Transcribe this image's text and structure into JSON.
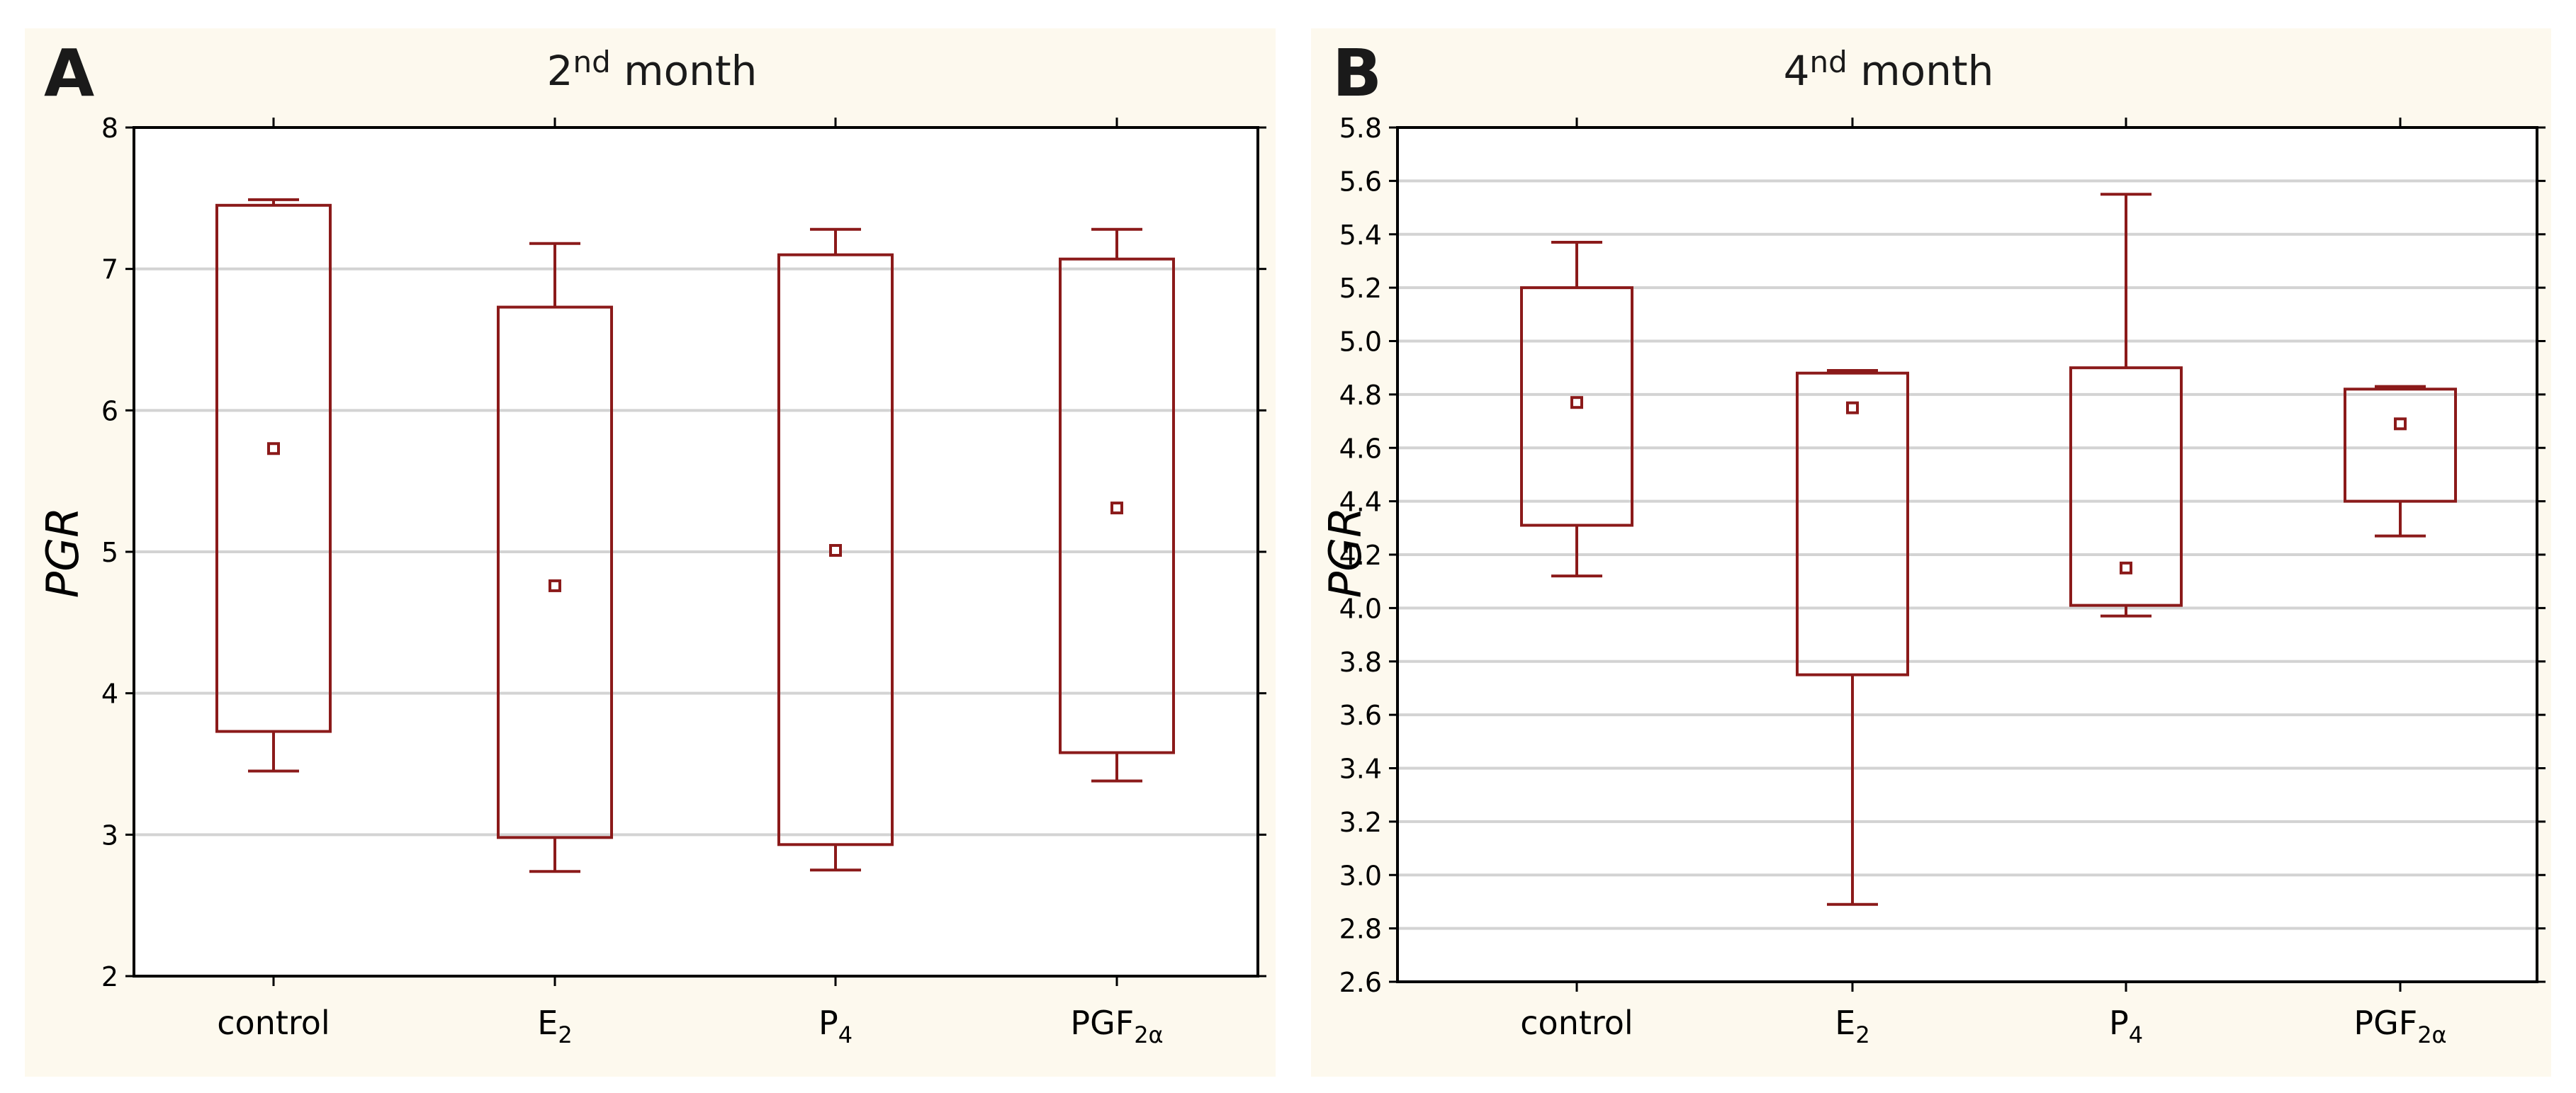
{
  "figure": {
    "colors": {
      "panel_background": "#fdf9ee",
      "plot_background": "#ffffff",
      "box_stroke": "#8b1a1a",
      "gridline": "#d3d3d3",
      "axis": "#000000"
    }
  },
  "chart_data": [
    {
      "panel_letter": "A",
      "type": "box",
      "title": "2nd month",
      "title_parts": {
        "main": "2",
        "superscript": "nd",
        "rest": " month"
      },
      "xlabel": "",
      "ylabel": "PGR",
      "ylim": [
        2,
        8
      ],
      "yticks": [
        2,
        3,
        4,
        5,
        6,
        7,
        8
      ],
      "ytick_labels": [
        "2",
        "3",
        "4",
        "5",
        "6",
        "7",
        "8"
      ],
      "grid": true,
      "categories": [
        {
          "name": "control",
          "base": "control",
          "sub": ""
        },
        {
          "name": "E2",
          "base": "E",
          "sub": "2"
        },
        {
          "name": "P4",
          "base": "P",
          "sub": "4"
        },
        {
          "name": "PGF2α",
          "base": "PGF",
          "sub": "2α"
        }
      ],
      "boxes": [
        {
          "category": "control",
          "whisker_low": 3.45,
          "q1": 3.73,
          "median": 5.73,
          "q3": 7.45,
          "whisker_high": 7.49
        },
        {
          "category": "E2",
          "whisker_low": 2.74,
          "q1": 2.98,
          "median": 4.76,
          "q3": 6.73,
          "whisker_high": 7.18
        },
        {
          "category": "P4",
          "whisker_low": 2.75,
          "q1": 2.93,
          "median": 5.01,
          "q3": 7.1,
          "whisker_high": 7.28
        },
        {
          "category": "PGF2α",
          "whisker_low": 3.38,
          "q1": 3.58,
          "median": 5.31,
          "q3": 7.07,
          "whisker_high": 7.28
        }
      ]
    },
    {
      "panel_letter": "B",
      "type": "box",
      "title": "4nd month",
      "title_parts": {
        "main": "4",
        "superscript": "nd",
        "rest": " month"
      },
      "xlabel": "",
      "ylabel": "PGR",
      "ylim": [
        2.6,
        5.8
      ],
      "yticks": [
        2.6,
        2.8,
        3.0,
        3.2,
        3.4,
        3.6,
        3.8,
        4.0,
        4.2,
        4.4,
        4.6,
        4.8,
        5.0,
        5.2,
        5.4,
        5.6,
        5.8
      ],
      "ytick_labels": [
        "2.6",
        "2.8",
        "3.0",
        "3.2",
        "3.4",
        "3.6",
        "3.8",
        "4.0",
        "4.2",
        "4.4",
        "4.6",
        "4.8",
        "5.0",
        "5.2",
        "5.4",
        "5.6",
        "5.8"
      ],
      "grid": true,
      "categories": [
        {
          "name": "control",
          "base": "control",
          "sub": ""
        },
        {
          "name": "E2",
          "base": "E",
          "sub": "2"
        },
        {
          "name": "P4",
          "base": "P",
          "sub": "4"
        },
        {
          "name": "PGF2α",
          "base": "PGF",
          "sub": "2α"
        }
      ],
      "boxes": [
        {
          "category": "control",
          "whisker_low": 4.12,
          "q1": 4.31,
          "median": 4.77,
          "q3": 5.2,
          "whisker_high": 5.37
        },
        {
          "category": "E2",
          "whisker_low": 2.89,
          "q1": 3.75,
          "median": 4.75,
          "q3": 4.88,
          "whisker_high": 4.89
        },
        {
          "category": "P4",
          "whisker_low": 3.97,
          "q1": 4.01,
          "median": 4.15,
          "q3": 4.9,
          "whisker_high": 5.55
        },
        {
          "category": "PGF2α",
          "whisker_low": 4.27,
          "q1": 4.4,
          "median": 4.69,
          "q3": 4.82,
          "whisker_high": 4.83
        }
      ]
    }
  ]
}
